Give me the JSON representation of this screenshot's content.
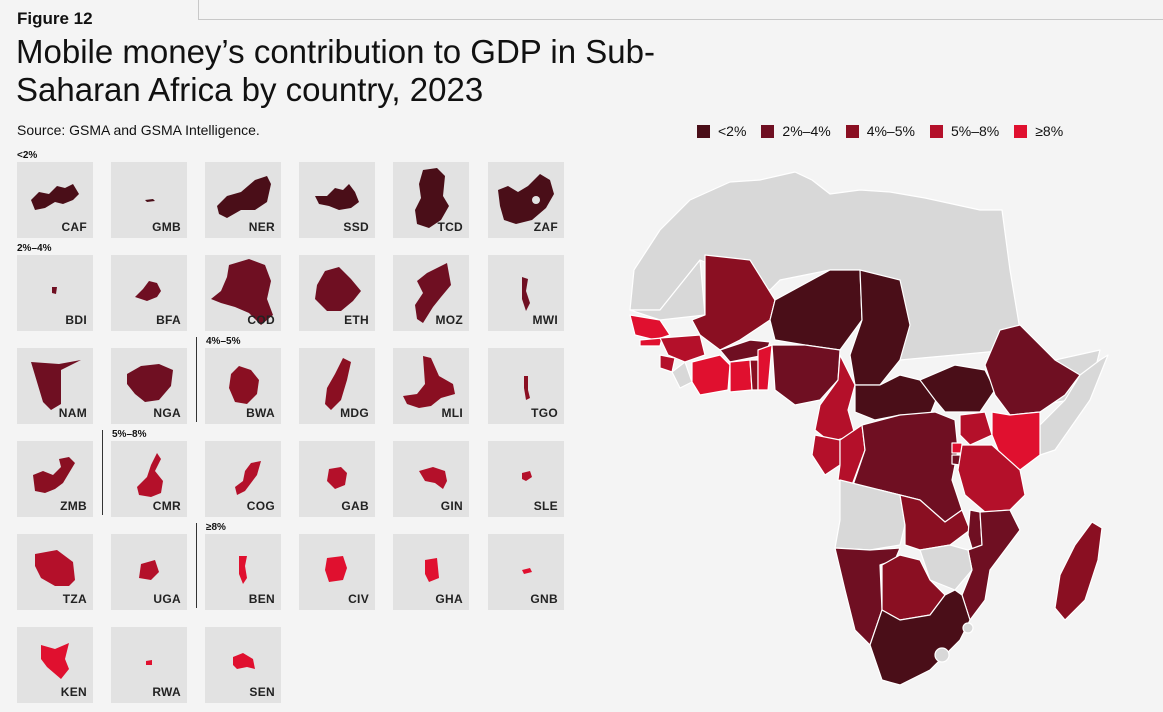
{
  "figure_label": "Figure 12",
  "title": "Mobile money’s contribution to GDP in Sub-Saharan Africa by country, 2023",
  "source": "Source: GSMA and GSMA Intelligence.",
  "colors": {
    "lt2": "#4a0e18",
    "2to4": "#6f0f22",
    "4to5": "#8a0f22",
    "5to8": "#b4102a",
    "ge8": "#e0102f",
    "no_data": "#d8d8d8",
    "tile_bg": "#e2e2e2"
  },
  "legend": [
    {
      "label": "<2%",
      "color": "#4a0e18"
    },
    {
      "label": "2%–4%",
      "color": "#6f0f22"
    },
    {
      "label": "4%–5%",
      "color": "#8a0f22"
    },
    {
      "label": "5%–8%",
      "color": "#b4102a"
    },
    {
      "label": "≥8%",
      "color": "#e0102f"
    }
  ],
  "group_labels": {
    "lt2": "<2%",
    "2to4": "2%–4%",
    "4to5": "4%–5%",
    "5to8": "5%–8%",
    "ge8": "≥8%"
  },
  "countries": [
    {
      "code": "CAF",
      "band": "<2%"
    },
    {
      "code": "GMB",
      "band": "<2%"
    },
    {
      "code": "NER",
      "band": "<2%"
    },
    {
      "code": "SSD",
      "band": "<2%"
    },
    {
      "code": "TCD",
      "band": "<2%"
    },
    {
      "code": "ZAF",
      "band": "<2%"
    },
    {
      "code": "BDI",
      "band": "2%–4%"
    },
    {
      "code": "BFA",
      "band": "2%–4%"
    },
    {
      "code": "COD",
      "band": "2%–4%"
    },
    {
      "code": "ETH",
      "band": "2%–4%"
    },
    {
      "code": "MOZ",
      "band": "2%–4%"
    },
    {
      "code": "MWI",
      "band": "2%–4%"
    },
    {
      "code": "NAM",
      "band": "2%–4%"
    },
    {
      "code": "NGA",
      "band": "2%–4%"
    },
    {
      "code": "BWA",
      "band": "4%–5%"
    },
    {
      "code": "MDG",
      "band": "4%–5%"
    },
    {
      "code": "MLI",
      "band": "4%–5%"
    },
    {
      "code": "TGO",
      "band": "4%–5%"
    },
    {
      "code": "ZMB",
      "band": "4%–5%"
    },
    {
      "code": "CMR",
      "band": "5%–8%"
    },
    {
      "code": "COG",
      "band": "5%–8%"
    },
    {
      "code": "GAB",
      "band": "5%–8%"
    },
    {
      "code": "GIN",
      "band": "5%–8%"
    },
    {
      "code": "SLE",
      "band": "5%–8%"
    },
    {
      "code": "TZA",
      "band": "5%–8%"
    },
    {
      "code": "UGA",
      "band": "5%–8%"
    },
    {
      "code": "BEN",
      "band": "≥8%"
    },
    {
      "code": "CIV",
      "band": "≥8%"
    },
    {
      "code": "GHA",
      "band": "≥8%"
    },
    {
      "code": "GNB",
      "band": "≥8%"
    },
    {
      "code": "KEN",
      "band": "≥8%"
    },
    {
      "code": "RWA",
      "band": "≥8%"
    },
    {
      "code": "SEN",
      "band": "≥8%"
    }
  ]
}
